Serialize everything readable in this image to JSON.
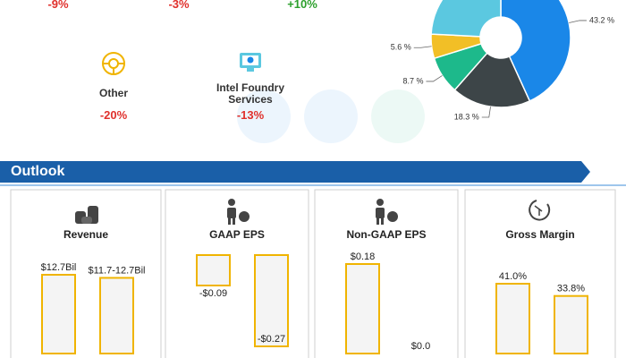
{
  "top_changes": [
    "-9%",
    "-3%",
    "+10%"
  ],
  "segments": [
    {
      "name": "Other",
      "change": "-20%"
    },
    {
      "name": "Intel Foundry Services",
      "change": "-13%"
    }
  ],
  "outlook_title": "Outlook",
  "chart_data": [
    {
      "type": "pie",
      "values": [
        43.2,
        18.3,
        8.7,
        5.6,
        24.2
      ],
      "value_labels": [
        "43.2 %",
        "18.3 %",
        "8.7 %",
        "5.6 %",
        null
      ],
      "colors": [
        "#1a87e8",
        "#3d4548",
        "#1db98b",
        "#f2bf26",
        "#5bc8e0"
      ]
    },
    {
      "type": "bar",
      "title": "Revenue",
      "values": [
        12.7,
        12.2
      ],
      "value_labels": [
        "$12.7Bil",
        "$11.7-12.7Bil"
      ],
      "color": "#f0b400"
    },
    {
      "type": "bar",
      "title": "GAAP EPS",
      "values": [
        -0.09,
        -0.27
      ],
      "value_labels": [
        "-$0.09",
        "-$0.27"
      ],
      "color": "#f0b400"
    },
    {
      "type": "bar",
      "title": "Non-GAAP EPS",
      "values": [
        0.18,
        0.0
      ],
      "value_labels": [
        "$0.18",
        "$0.0"
      ],
      "color": "#f0b400"
    },
    {
      "type": "bar",
      "title": "Gross Margin",
      "values": [
        41.0,
        33.8
      ],
      "value_labels": [
        "41.0%",
        "33.8%"
      ],
      "color": "#f0b400"
    }
  ]
}
